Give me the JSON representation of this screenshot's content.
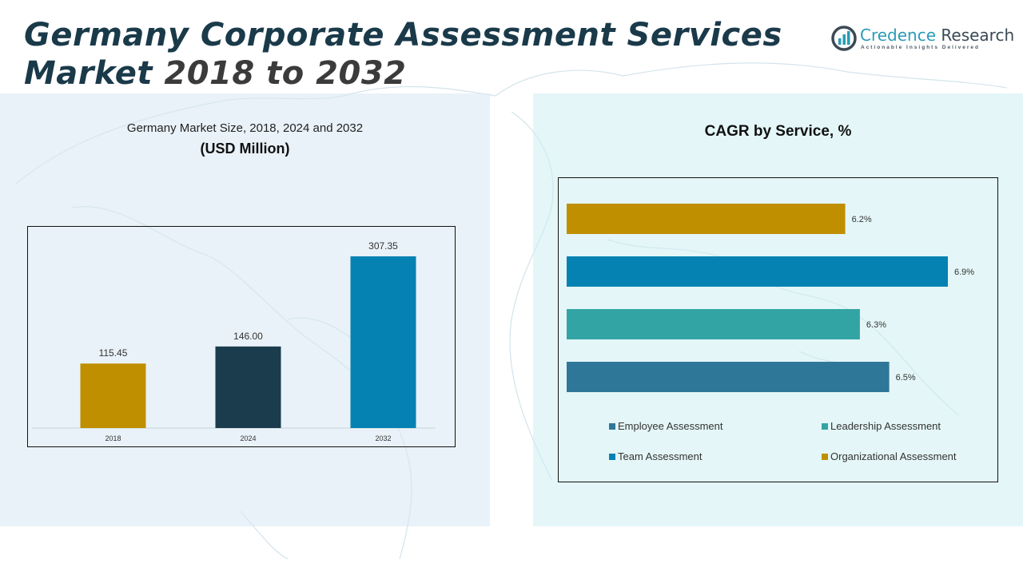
{
  "header": {
    "title_line1": "Germany Corporate Assessment Services",
    "title_line2_word": "Market",
    "title_line2_years": "2018 to 2032"
  },
  "logo": {
    "name_part1": "Credence",
    "name_part2": "Research",
    "tagline": "Actionable Insights Delivered",
    "icon": "bar-chart-circle-icon"
  },
  "left_panel": {
    "subtitle": "Germany Market Size, 2018, 2024 and 2032",
    "unit": "(USD Million)"
  },
  "right_panel": {
    "title": "CAGR by Service, %"
  },
  "chart_data": [
    {
      "type": "bar",
      "title": "Germany Market Size, 2018, 2024 and 2032",
      "subtitle": "(USD Million)",
      "xlabel": "",
      "ylabel": "",
      "categories": [
        "2018",
        "2024",
        "2032"
      ],
      "values": [
        115.45,
        146.0,
        307.35
      ],
      "labels": [
        "115.45",
        "146.00",
        "307.35"
      ],
      "colors": [
        "#c08f00",
        "#1a3c4c",
        "#0582b2"
      ],
      "ylim": [
        0,
        330
      ],
      "grid": false
    },
    {
      "type": "bar",
      "orientation": "horizontal",
      "title": "CAGR by Service, %",
      "categories": [
        "Organizational Assessment",
        "Team Assessment",
        "Leadership Assessment",
        "Employee Assessment"
      ],
      "values": [
        6.2,
        6.9,
        6.3,
        6.5
      ],
      "labels": [
        "6.2%",
        "6.9%",
        "6.3%",
        "6.5%"
      ],
      "colors": [
        "#c08f00",
        "#0582b2",
        "#33a4a4",
        "#2f7799"
      ],
      "grid": false,
      "legend": {
        "placement": "bottom",
        "entries": [
          {
            "label": "Employee Assessment",
            "color": "#2f7799"
          },
          {
            "label": "Leadership Assessment",
            "color": "#33a4a4"
          },
          {
            "label": "Team Assessment",
            "color": "#0582b2"
          },
          {
            "label": "Organizational Assessment",
            "color": "#c08f00"
          }
        ]
      }
    }
  ]
}
